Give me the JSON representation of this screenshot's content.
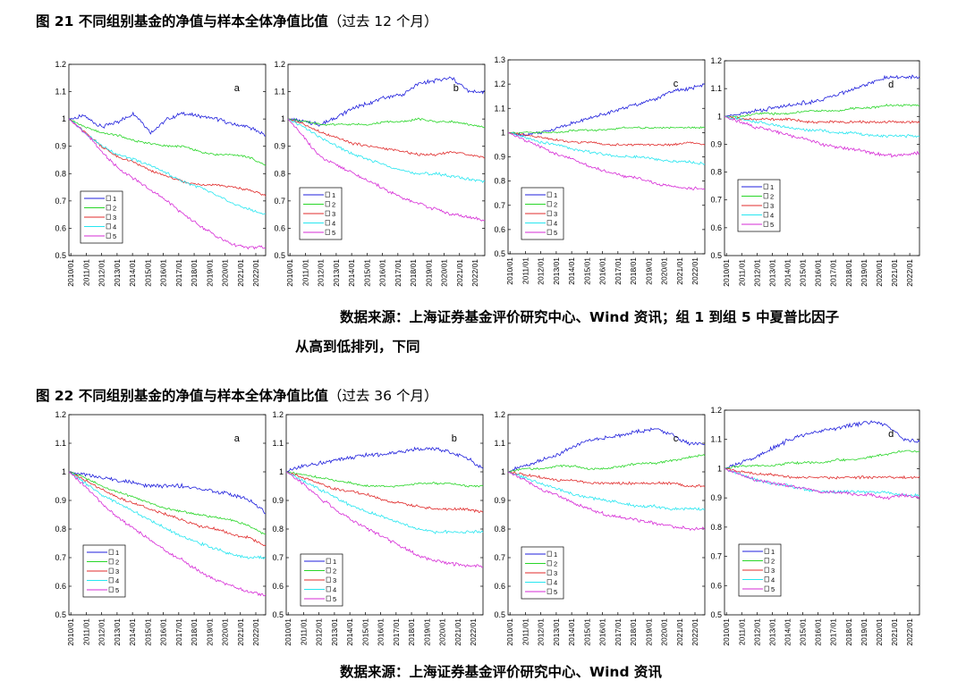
{
  "colors": {
    "g1": "#1f1fdc",
    "g2": "#29d629",
    "g3": "#e02b2b",
    "g4": "#27e6f0",
    "g5": "#d62bd6"
  },
  "legend": [
    "1",
    "2",
    "3",
    "4",
    "5"
  ],
  "fig21": {
    "title_main": "图 21  不同组别基金的净值与样本全体净值比值",
    "title_paren": "（过去 12 个月）",
    "source_line1": "数据来源：上海证券基金评价研究中心、Wind 资讯；组 1 到组 5 中夏普比因子",
    "source_line2": "从高到低排列，下同"
  },
  "fig22": {
    "title_main": "图 22  不同组别基金的净值与样本全体净值比值",
    "title_paren": "（过去 36 个月）",
    "source_line1": "数据来源：上海证券基金评价研究中心、Wind 资讯"
  },
  "chart_data": [
    {
      "type": "line",
      "figure": "图 21",
      "panel": "a",
      "categories": [
        "2010/01",
        "2011/01",
        "2012/01",
        "2013/01",
        "2014/01",
        "2015/01",
        "2016/01",
        "2017/01",
        "2018/01",
        "2019/01",
        "2020/01",
        "2021/01",
        "2022/01"
      ],
      "ylim": [
        0.5,
        1.2
      ],
      "yticks": [
        "0.5",
        "0.6",
        "0.7",
        "0.8",
        "0.9",
        "1",
        "1.1",
        "1.2"
      ],
      "series": [
        {
          "name": "1",
          "values": [
            1.0,
            1.01,
            0.97,
            0.99,
            1.02,
            0.95,
            1.0,
            1.02,
            1.01,
            1.0,
            0.98,
            0.97,
            0.94
          ]
        },
        {
          "name": "2",
          "values": [
            1.0,
            0.97,
            0.95,
            0.94,
            0.92,
            0.91,
            0.9,
            0.9,
            0.88,
            0.87,
            0.87,
            0.86,
            0.83
          ]
        },
        {
          "name": "3",
          "values": [
            1.0,
            0.95,
            0.9,
            0.86,
            0.84,
            0.81,
            0.79,
            0.77,
            0.76,
            0.76,
            0.75,
            0.74,
            0.72
          ]
        },
        {
          "name": "4",
          "values": [
            1.0,
            0.95,
            0.9,
            0.87,
            0.85,
            0.83,
            0.8,
            0.77,
            0.75,
            0.72,
            0.69,
            0.67,
            0.65
          ]
        },
        {
          "name": "5",
          "values": [
            1.0,
            0.95,
            0.88,
            0.82,
            0.78,
            0.74,
            0.7,
            0.65,
            0.61,
            0.57,
            0.54,
            0.53,
            0.53
          ]
        }
      ]
    },
    {
      "type": "line",
      "figure": "图 21",
      "panel": "b",
      "categories": [
        "2010/01",
        "2011/01",
        "2012/01",
        "2013/01",
        "2014/01",
        "2015/01",
        "2016/01",
        "2017/01",
        "2018/01",
        "2019/01",
        "2020/01",
        "2021/01",
        "2022/01"
      ],
      "ylim": [
        0.5,
        1.2
      ],
      "yticks": [
        "0.5",
        "0.6",
        "0.7",
        "0.8",
        "0.9",
        "1",
        "1.1",
        "1.2"
      ],
      "series": [
        {
          "name": "1",
          "values": [
            1.0,
            0.99,
            0.98,
            1.01,
            1.04,
            1.06,
            1.08,
            1.09,
            1.13,
            1.14,
            1.15,
            1.1,
            1.1
          ]
        },
        {
          "name": "2",
          "values": [
            1.0,
            0.99,
            0.98,
            0.98,
            0.98,
            0.98,
            0.99,
            0.99,
            1.0,
            0.99,
            0.99,
            0.98,
            0.97
          ]
        },
        {
          "name": "3",
          "values": [
            1.0,
            0.98,
            0.95,
            0.93,
            0.91,
            0.9,
            0.89,
            0.88,
            0.87,
            0.87,
            0.88,
            0.87,
            0.86
          ]
        },
        {
          "name": "4",
          "values": [
            1.0,
            0.97,
            0.93,
            0.9,
            0.87,
            0.85,
            0.83,
            0.81,
            0.8,
            0.8,
            0.79,
            0.78,
            0.77
          ]
        },
        {
          "name": "5",
          "values": [
            1.0,
            0.93,
            0.86,
            0.83,
            0.8,
            0.77,
            0.74,
            0.71,
            0.69,
            0.67,
            0.65,
            0.64,
            0.63
          ]
        }
      ]
    },
    {
      "type": "line",
      "figure": "图 21",
      "panel": "c",
      "categories": [
        "2010/01",
        "2011/01",
        "2012/01",
        "2013/01",
        "2014/01",
        "2015/01",
        "2016/01",
        "2017/01",
        "2018/01",
        "2019/01",
        "2020/01",
        "2021/01",
        "2022/01"
      ],
      "ylim": [
        0.5,
        1.3
      ],
      "yticks": [
        "0.5",
        "0.6",
        "0.7",
        "0.8",
        "0.9",
        "1",
        "1.1",
        "1.2",
        "1.3"
      ],
      "series": [
        {
          "name": "1",
          "values": [
            1.0,
            0.99,
            1.0,
            1.02,
            1.04,
            1.06,
            1.08,
            1.1,
            1.12,
            1.14,
            1.17,
            1.18,
            1.2
          ]
        },
        {
          "name": "2",
          "values": [
            1.0,
            1.0,
            1.0,
            1.0,
            1.01,
            1.01,
            1.01,
            1.02,
            1.02,
            1.02,
            1.02,
            1.02,
            1.02
          ]
        },
        {
          "name": "3",
          "values": [
            1.0,
            0.99,
            0.98,
            0.97,
            0.96,
            0.96,
            0.95,
            0.95,
            0.95,
            0.95,
            0.95,
            0.96,
            0.95
          ]
        },
        {
          "name": "4",
          "values": [
            1.0,
            0.98,
            0.96,
            0.95,
            0.93,
            0.92,
            0.91,
            0.9,
            0.9,
            0.89,
            0.88,
            0.88,
            0.87
          ]
        },
        {
          "name": "5",
          "values": [
            1.0,
            0.97,
            0.94,
            0.91,
            0.89,
            0.86,
            0.84,
            0.82,
            0.81,
            0.79,
            0.78,
            0.77,
            0.77
          ]
        }
      ]
    },
    {
      "type": "line",
      "figure": "图 21",
      "panel": "d",
      "categories": [
        "2010/01",
        "2011/01",
        "2012/01",
        "2013/01",
        "2014/01",
        "2015/01",
        "2016/01",
        "2017/01",
        "2018/01",
        "2019/01",
        "2020/01",
        "2021/01",
        "2022/01"
      ],
      "ylim": [
        0.5,
        1.2
      ],
      "yticks": [
        "0.5",
        "0.6",
        "0.7",
        "0.8",
        "0.9",
        "1",
        "1.1",
        "1.2"
      ],
      "series": [
        {
          "name": "1",
          "values": [
            1.0,
            1.01,
            1.02,
            1.03,
            1.04,
            1.05,
            1.06,
            1.08,
            1.1,
            1.12,
            1.14,
            1.14,
            1.14
          ]
        },
        {
          "name": "2",
          "values": [
            1.0,
            1.0,
            1.01,
            1.01,
            1.01,
            1.02,
            1.02,
            1.02,
            1.03,
            1.03,
            1.04,
            1.04,
            1.04
          ]
        },
        {
          "name": "3",
          "values": [
            1.0,
            0.99,
            0.99,
            0.99,
            0.99,
            0.98,
            0.98,
            0.98,
            0.98,
            0.98,
            0.98,
            0.98,
            0.98
          ]
        },
        {
          "name": "4",
          "values": [
            1.0,
            0.99,
            0.98,
            0.97,
            0.96,
            0.95,
            0.95,
            0.94,
            0.94,
            0.93,
            0.93,
            0.93,
            0.93
          ]
        },
        {
          "name": "5",
          "values": [
            1.0,
            0.98,
            0.96,
            0.95,
            0.93,
            0.92,
            0.9,
            0.89,
            0.88,
            0.87,
            0.86,
            0.86,
            0.87
          ]
        }
      ]
    },
    {
      "type": "line",
      "figure": "图 22",
      "panel": "a",
      "categories": [
        "2010/01",
        "2011/01",
        "2012/01",
        "2013/01",
        "2014/01",
        "2015/01",
        "2016/01",
        "2017/01",
        "2018/01",
        "2019/01",
        "2020/01",
        "2021/01",
        "2022/01"
      ],
      "ylim": [
        0.5,
        1.2
      ],
      "yticks": [
        "0.5",
        "0.6",
        "0.7",
        "0.8",
        "0.9",
        "1",
        "1.1",
        "1.2"
      ],
      "series": [
        {
          "name": "1",
          "values": [
            1.0,
            0.99,
            0.98,
            0.97,
            0.96,
            0.95,
            0.95,
            0.95,
            0.94,
            0.93,
            0.92,
            0.9,
            0.86
          ]
        },
        {
          "name": "2",
          "values": [
            1.0,
            0.98,
            0.95,
            0.93,
            0.91,
            0.89,
            0.87,
            0.86,
            0.85,
            0.84,
            0.83,
            0.81,
            0.78
          ]
        },
        {
          "name": "3",
          "values": [
            1.0,
            0.97,
            0.94,
            0.91,
            0.89,
            0.87,
            0.85,
            0.83,
            0.81,
            0.8,
            0.78,
            0.77,
            0.74
          ]
        },
        {
          "name": "4",
          "values": [
            1.0,
            0.96,
            0.92,
            0.89,
            0.86,
            0.83,
            0.8,
            0.77,
            0.75,
            0.73,
            0.71,
            0.7,
            0.7
          ]
        },
        {
          "name": "5",
          "values": [
            1.0,
            0.95,
            0.89,
            0.84,
            0.8,
            0.76,
            0.72,
            0.69,
            0.65,
            0.62,
            0.6,
            0.58,
            0.57
          ]
        }
      ]
    },
    {
      "type": "line",
      "figure": "图 22",
      "panel": "b",
      "categories": [
        "2010/01",
        "2011/01",
        "2012/01",
        "2013/01",
        "2014/01",
        "2015/01",
        "2016/01",
        "2017/01",
        "2018/01",
        "2019/01",
        "2020/01",
        "2021/01",
        "2022/01"
      ],
      "ylim": [
        0.5,
        1.2
      ],
      "yticks": [
        "0.5",
        "0.6",
        "0.7",
        "0.8",
        "0.9",
        "1",
        "1.1",
        "1.2"
      ],
      "series": [
        {
          "name": "1",
          "values": [
            1.0,
            1.02,
            1.03,
            1.04,
            1.05,
            1.06,
            1.06,
            1.07,
            1.08,
            1.08,
            1.07,
            1.05,
            1.01
          ]
        },
        {
          "name": "2",
          "values": [
            1.0,
            0.99,
            0.98,
            0.97,
            0.96,
            0.95,
            0.95,
            0.95,
            0.96,
            0.96,
            0.96,
            0.95,
            0.95
          ]
        },
        {
          "name": "3",
          "values": [
            1.0,
            0.98,
            0.96,
            0.94,
            0.93,
            0.92,
            0.9,
            0.89,
            0.88,
            0.87,
            0.87,
            0.87,
            0.86
          ]
        },
        {
          "name": "4",
          "values": [
            1.0,
            0.97,
            0.94,
            0.91,
            0.88,
            0.86,
            0.84,
            0.82,
            0.8,
            0.79,
            0.79,
            0.79,
            0.79
          ]
        },
        {
          "name": "5",
          "values": [
            1.0,
            0.96,
            0.91,
            0.87,
            0.83,
            0.8,
            0.77,
            0.74,
            0.71,
            0.69,
            0.68,
            0.67,
            0.67
          ]
        }
      ]
    },
    {
      "type": "line",
      "figure": "图 22",
      "panel": "c",
      "categories": [
        "2010/01",
        "2011/01",
        "2012/01",
        "2013/01",
        "2014/01",
        "2015/01",
        "2016/01",
        "2017/01",
        "2018/01",
        "2019/01",
        "2020/01",
        "2021/01",
        "2022/01"
      ],
      "ylim": [
        0.5,
        1.2
      ],
      "yticks": [
        "0.5",
        "0.6",
        "0.7",
        "0.8",
        "0.9",
        "1",
        "1.1",
        "1.2"
      ],
      "series": [
        {
          "name": "1",
          "values": [
            1.0,
            1.02,
            1.04,
            1.06,
            1.09,
            1.11,
            1.12,
            1.13,
            1.14,
            1.15,
            1.13,
            1.1,
            1.1
          ]
        },
        {
          "name": "2",
          "values": [
            1.0,
            1.01,
            1.01,
            1.02,
            1.02,
            1.01,
            1.01,
            1.02,
            1.03,
            1.03,
            1.04,
            1.05,
            1.06
          ]
        },
        {
          "name": "3",
          "values": [
            1.0,
            0.99,
            0.98,
            0.97,
            0.97,
            0.96,
            0.96,
            0.96,
            0.96,
            0.96,
            0.96,
            0.95,
            0.95
          ]
        },
        {
          "name": "4",
          "values": [
            1.0,
            0.98,
            0.96,
            0.94,
            0.92,
            0.91,
            0.9,
            0.89,
            0.88,
            0.88,
            0.87,
            0.87,
            0.87
          ]
        },
        {
          "name": "5",
          "values": [
            1.0,
            0.97,
            0.94,
            0.92,
            0.89,
            0.87,
            0.85,
            0.84,
            0.83,
            0.82,
            0.81,
            0.8,
            0.8
          ]
        }
      ]
    },
    {
      "type": "line",
      "figure": "图 22",
      "panel": "d",
      "categories": [
        "2010/01",
        "2011/01",
        "2012/01",
        "2013/01",
        "2014/01",
        "2015/01",
        "2016/01",
        "2017/01",
        "2018/01",
        "2019/01",
        "2020/01",
        "2021/01",
        "2022/01"
      ],
      "ylim": [
        0.5,
        1.2
      ],
      "yticks": [
        "0.5",
        "0.6",
        "0.7",
        "0.8",
        "0.9",
        "1",
        "1.1",
        "1.2"
      ],
      "series": [
        {
          "name": "1",
          "values": [
            1.0,
            1.02,
            1.04,
            1.07,
            1.1,
            1.12,
            1.13,
            1.14,
            1.15,
            1.16,
            1.15,
            1.1,
            1.09
          ]
        },
        {
          "name": "2",
          "values": [
            1.0,
            1.01,
            1.01,
            1.01,
            1.02,
            1.02,
            1.02,
            1.03,
            1.03,
            1.04,
            1.05,
            1.06,
            1.06
          ]
        },
        {
          "name": "3",
          "values": [
            1.0,
            0.99,
            0.98,
            0.98,
            0.97,
            0.97,
            0.97,
            0.97,
            0.97,
            0.97,
            0.97,
            0.97,
            0.97
          ]
        },
        {
          "name": "4",
          "values": [
            1.0,
            0.98,
            0.96,
            0.95,
            0.94,
            0.93,
            0.92,
            0.92,
            0.92,
            0.92,
            0.92,
            0.91,
            0.91
          ]
        },
        {
          "name": "5",
          "values": [
            1.0,
            0.98,
            0.96,
            0.95,
            0.94,
            0.93,
            0.92,
            0.92,
            0.91,
            0.91,
            0.9,
            0.91,
            0.9
          ]
        }
      ]
    }
  ]
}
